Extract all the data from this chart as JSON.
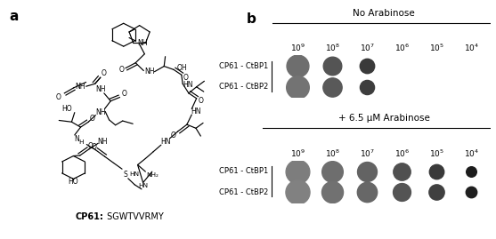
{
  "fig_width": 5.57,
  "fig_height": 2.69,
  "dpi": 100,
  "panel_a_label": "a",
  "panel_b_label": "b",
  "cp61_bold": "CP61:",
  "sequence_text": " SGWTVVRMY",
  "title_no_arab": "No Arabinose",
  "title_arab": "+ 6.5 μM Arabinose",
  "row_labels_no_arab": [
    "CP61 - CtBP1",
    "CP61 - CtBP2"
  ],
  "row_labels_arab": [
    "CP61 - CtBP1",
    "CP61 - CtBP2"
  ],
  "header_bg": "#c8c8c8",
  "plate_bg": "#111111",
  "no_arab_spots": [
    [
      0.72,
      0.55,
      0.38,
      0.0,
      0.0,
      0.0
    ],
    [
      0.75,
      0.58,
      0.4,
      0.0,
      0.0,
      0.0
    ]
  ],
  "arab_spots": [
    [
      0.82,
      0.72,
      0.65,
      0.52,
      0.38,
      0.18
    ],
    [
      0.84,
      0.74,
      0.67,
      0.55,
      0.42,
      0.2
    ]
  ],
  "no_arab_spot_sizes": [
    [
      320,
      220,
      140,
      0,
      0,
      0
    ],
    [
      340,
      235,
      135,
      0,
      0,
      0
    ]
  ],
  "arab_spot_sizes": [
    [
      370,
      290,
      250,
      195,
      140,
      70
    ],
    [
      380,
      300,
      260,
      205,
      155,
      80
    ]
  ]
}
